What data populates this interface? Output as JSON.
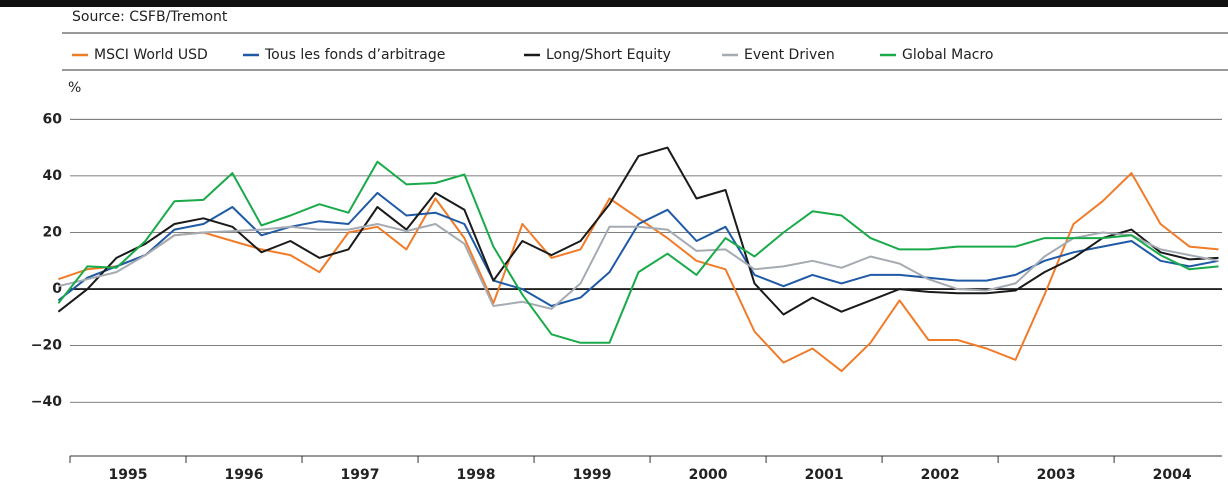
{
  "chart_data": {
    "type": "line",
    "source": "Source: CSFB/Tremont",
    "y_unit": "%",
    "x": [
      1994.9,
      1995.15,
      1995.4,
      1995.65,
      1995.9,
      1996.15,
      1996.4,
      1996.65,
      1996.9,
      1997.15,
      1997.4,
      1997.65,
      1997.9,
      1998.15,
      1998.4,
      1998.65,
      1998.9,
      1999.15,
      1999.4,
      1999.65,
      1999.9,
      2000.15,
      2000.4,
      2000.65,
      2000.9,
      2001.15,
      2001.4,
      2001.65,
      2001.9,
      2002.15,
      2002.4,
      2002.65,
      2002.9,
      2003.15,
      2003.4,
      2003.65,
      2003.9,
      2004.15,
      2004.4,
      2004.65,
      2004.9
    ],
    "xlim": [
      1995,
      2004.93
    ],
    "xticks": [
      {
        "value": 1995.5,
        "label": "1995"
      },
      {
        "value": 1996.5,
        "label": "1996"
      },
      {
        "value": 1997.5,
        "label": "1997"
      },
      {
        "value": 1998.5,
        "label": "1998"
      },
      {
        "value": 1999.5,
        "label": "1999"
      },
      {
        "value": 2000.5,
        "label": "2000"
      },
      {
        "value": 2001.5,
        "label": "2001"
      },
      {
        "value": 2002.5,
        "label": "2002"
      },
      {
        "value": 2003.5,
        "label": "2003"
      },
      {
        "value": 2004.5,
        "label": "2004"
      }
    ],
    "ylim": [
      -59,
      70
    ],
    "yticks": [
      {
        "value": -40,
        "label": "−40"
      },
      {
        "value": -20,
        "label": "−20"
      },
      0,
      20,
      40,
      60
    ],
    "grid": true,
    "series": [
      {
        "name": "MSCI World USD",
        "color": "#f07c2a",
        "values": [
          3.5,
          7,
          8,
          12,
          19,
          20,
          17,
          14,
          12,
          6,
          20,
          22,
          14,
          32,
          18,
          -5,
          23,
          11,
          14,
          32,
          25,
          18,
          10,
          7,
          -15,
          -26,
          -21,
          -29,
          -19,
          -4,
          -18,
          -18,
          -21,
          -25,
          -2,
          23,
          31,
          41,
          23,
          15,
          14
        ]
      },
      {
        "name": "Tous les fonds d’arbitrage",
        "color": "#1f5aa6",
        "values": [
          -4,
          4,
          8,
          12,
          21,
          23,
          29,
          19,
          22,
          24,
          23,
          34,
          26,
          27,
          23,
          3,
          0,
          -6,
          -3,
          6,
          23,
          28,
          17,
          22,
          5,
          1,
          5,
          2,
          5,
          5,
          4,
          3,
          3,
          5,
          10,
          13,
          15,
          17,
          10,
          8,
          10
        ]
      },
      {
        "name": "Long/Short Equity",
        "color": "#1a1a1a",
        "values": [
          -8,
          0,
          11,
          16,
          23,
          25,
          22,
          13,
          17,
          11,
          14,
          29,
          21,
          34,
          28,
          3,
          17,
          12,
          17,
          30,
          47,
          50,
          32,
          35,
          2,
          -9,
          -3,
          -8,
          -4,
          0,
          -1,
          -1.5,
          -1.5,
          -0.5,
          6,
          11,
          18,
          21,
          13,
          10.5,
          11
        ]
      },
      {
        "name": "Event Driven",
        "color": "#a5abb3",
        "values": [
          1,
          3.5,
          6,
          12,
          19,
          20,
          20.5,
          21,
          22,
          21,
          21,
          23,
          20.5,
          23,
          16,
          -6,
          -4.5,
          -7,
          2,
          22,
          22,
          21,
          13.5,
          14,
          7,
          8,
          10,
          7.5,
          11.5,
          9,
          3.5,
          0,
          -0.5,
          2,
          11.5,
          18,
          20,
          19,
          14,
          12,
          10
        ]
      },
      {
        "name": "Global Macro",
        "color": "#1aaa4a",
        "values": [
          -5,
          8,
          7.5,
          17,
          31,
          31.5,
          41,
          22.5,
          26,
          30,
          27,
          45,
          37,
          37.5,
          40.5,
          15,
          -2,
          -16,
          -19,
          -19,
          6,
          12.5,
          5,
          18,
          11.5,
          20,
          27.5,
          26,
          18,
          14,
          14,
          15,
          15,
          15,
          18,
          18,
          18,
          19,
          12,
          7,
          8
        ]
      }
    ]
  }
}
